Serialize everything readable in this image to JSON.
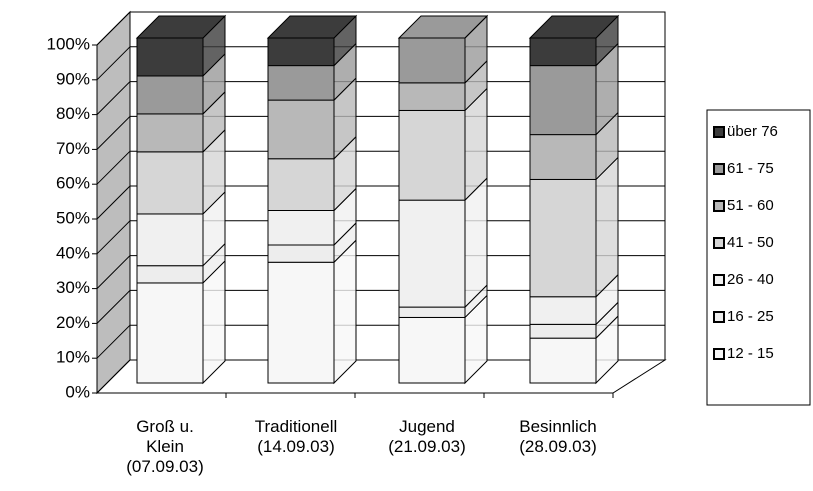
{
  "chart_data": {
    "type": "stacked-bar-3d",
    "categories": [
      [
        "Groß u.",
        "Klein",
        "(07.09.03)"
      ],
      [
        "Traditionell",
        "(14.09.03)"
      ],
      [
        "Jugend",
        "(21.09.03)"
      ],
      [
        "Besinnlich",
        "(28.09.03)"
      ]
    ],
    "series": [
      {
        "name": "12 - 15",
        "color": "#f7f7f7",
        "values": [
          29,
          35,
          19,
          13
        ]
      },
      {
        "name": "16 - 25",
        "color": "#ededed",
        "values": [
          5,
          5,
          3,
          4
        ]
      },
      {
        "name": "26 - 40",
        "color": "#f0f0f0",
        "values": [
          15,
          10,
          31,
          8
        ]
      },
      {
        "name": "41 - 50",
        "color": "#d6d6d6",
        "values": [
          18,
          15,
          26,
          34
        ]
      },
      {
        "name": "51 - 60",
        "color": "#b8b8b8",
        "values": [
          11,
          17,
          8,
          13
        ]
      },
      {
        "name": "61 - 75",
        "color": "#9a9a9a",
        "values": [
          11,
          10,
          13,
          20
        ]
      },
      {
        "name": "über 76",
        "color": "#3c3c3c",
        "values": [
          11,
          8,
          0,
          8
        ]
      }
    ],
    "ylim": [
      0,
      100
    ],
    "yticks": [
      {
        "value": 0,
        "label": "0%"
      },
      {
        "value": 10,
        "label": "10%"
      },
      {
        "value": 20,
        "label": "20%"
      },
      {
        "value": 30,
        "label": "30%"
      },
      {
        "value": 40,
        "label": "40%"
      },
      {
        "value": 50,
        "label": "50%"
      },
      {
        "value": 60,
        "label": "60%"
      },
      {
        "value": 70,
        "label": "70%"
      },
      {
        "value": 80,
        "label": "80%"
      },
      {
        "value": 90,
        "label": "90%"
      },
      {
        "value": 100,
        "label": "100%"
      }
    ],
    "grid": true
  }
}
